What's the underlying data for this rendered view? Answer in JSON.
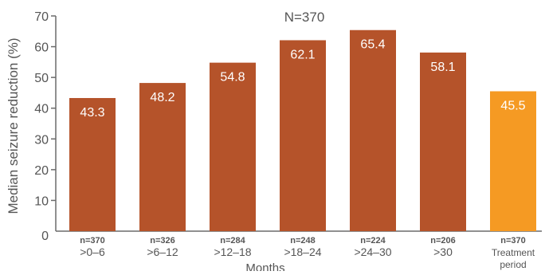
{
  "chart_data": {
    "type": "bar",
    "title": "N=370",
    "xlabel": "Months",
    "ylabel": "Median seizure reduction (%)",
    "ylim": [
      0,
      70
    ],
    "yticks": [
      0,
      10,
      20,
      30,
      40,
      50,
      60,
      70
    ],
    "grid": false,
    "categories": [
      {
        "n": "n=370",
        "label": ">0–6"
      },
      {
        "n": "n=326",
        "label": ">6–12"
      },
      {
        "n": "n=284",
        "label": ">12–18"
      },
      {
        "n": "n=248",
        "label": ">18–24"
      },
      {
        "n": "n=224",
        "label": ">24–30"
      },
      {
        "n": "n=206",
        "label": ">30"
      },
      {
        "n": "n=370",
        "label": "Treatment",
        "label2": "period"
      }
    ],
    "values": [
      43.3,
      48.2,
      54.8,
      62.1,
      65.4,
      58.1,
      45.5
    ],
    "value_labels": [
      "43.3",
      "48.2",
      "54.8",
      "62.1",
      "65.4",
      "58.1",
      "45.5"
    ],
    "colors": [
      "#b5532a",
      "#b5532a",
      "#b5532a",
      "#b5532a",
      "#b5532a",
      "#b5532a",
      "#f59a23"
    ],
    "axis_color": "#6b6b6b",
    "text_color": "#555555"
  }
}
